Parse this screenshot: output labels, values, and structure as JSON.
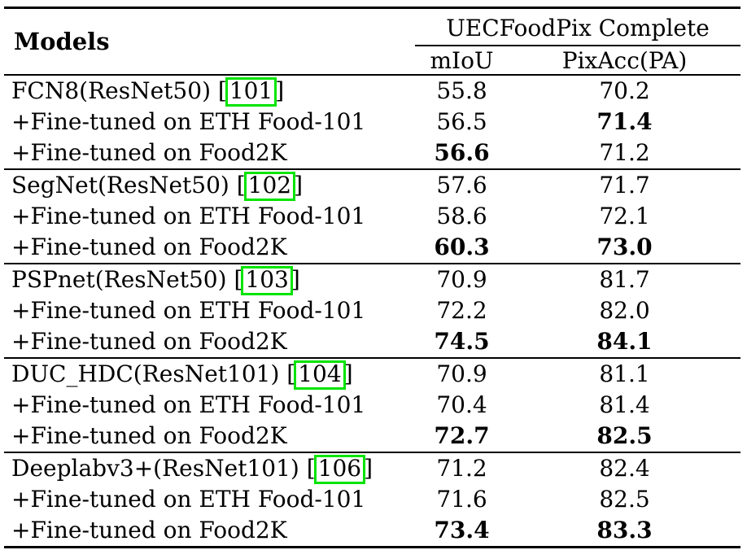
{
  "page": {
    "background": "#ffffff",
    "text_color": "#000000"
  },
  "table": {
    "title_column_header": "Models",
    "group_header": "UECFoodPix Complete",
    "metric_headers": [
      "mIoU",
      "PixAcc(PA)"
    ],
    "citation_box_color": "#00e400",
    "groups": [
      {
        "rows": [
          {
            "model": "FCN8(ResNet50)",
            "cite": "101",
            "miou": "55.8",
            "pa": "70.2",
            "miou_bold": false,
            "pa_bold": false
          },
          {
            "model": "+Fine-tuned on ETH Food-101",
            "cite": "",
            "miou": "56.5",
            "pa": "71.4",
            "miou_bold": false,
            "pa_bold": true
          },
          {
            "model": "+Fine-tuned on Food2K",
            "cite": "",
            "miou": "56.6",
            "pa": "71.2",
            "miou_bold": true,
            "pa_bold": false
          }
        ]
      },
      {
        "rows": [
          {
            "model": "SegNet(ResNet50)",
            "cite": "102",
            "miou": "57.6",
            "pa": "71.7",
            "miou_bold": false,
            "pa_bold": false
          },
          {
            "model": "+Fine-tuned on ETH Food-101",
            "cite": "",
            "miou": "58.6",
            "pa": "72.1",
            "miou_bold": false,
            "pa_bold": false
          },
          {
            "model": "+Fine-tuned on Food2K",
            "cite": "",
            "miou": "60.3",
            "pa": "73.0",
            "miou_bold": true,
            "pa_bold": true
          }
        ]
      },
      {
        "rows": [
          {
            "model": "PSPnet(ResNet50)",
            "cite": "103",
            "miou": "70.9",
            "pa": "81.7",
            "miou_bold": false,
            "pa_bold": false
          },
          {
            "model": "+Fine-tuned on ETH Food-101",
            "cite": "",
            "miou": "72.2",
            "pa": "82.0",
            "miou_bold": false,
            "pa_bold": false
          },
          {
            "model": "+Fine-tuned on Food2K",
            "cite": "",
            "miou": "74.5",
            "pa": "84.1",
            "miou_bold": true,
            "pa_bold": true
          }
        ]
      },
      {
        "rows": [
          {
            "model": "DUC_HDC(ResNet101)",
            "cite": "104",
            "miou": "70.9",
            "pa": "81.1",
            "miou_bold": false,
            "pa_bold": false
          },
          {
            "model": "+Fine-tuned on ETH Food-101",
            "cite": "",
            "miou": "70.4",
            "pa": "81.4",
            "miou_bold": false,
            "pa_bold": false
          },
          {
            "model": "+Fine-tuned on Food2K",
            "cite": "",
            "miou": "72.7",
            "pa": "82.5",
            "miou_bold": true,
            "pa_bold": true
          }
        ]
      },
      {
        "rows": [
          {
            "model": "Deeplabv3+(ResNet101)",
            "cite": "106",
            "miou": "71.2",
            "pa": "82.4",
            "miou_bold": false,
            "pa_bold": false
          },
          {
            "model": "+Fine-tuned on ETH Food-101",
            "cite": "",
            "miou": "71.6",
            "pa": "82.5",
            "miou_bold": false,
            "pa_bold": false
          },
          {
            "model": "+Fine-tuned on Food2K",
            "cite": "",
            "miou": "73.4",
            "pa": "83.3",
            "miou_bold": true,
            "pa_bold": true
          }
        ]
      }
    ]
  }
}
